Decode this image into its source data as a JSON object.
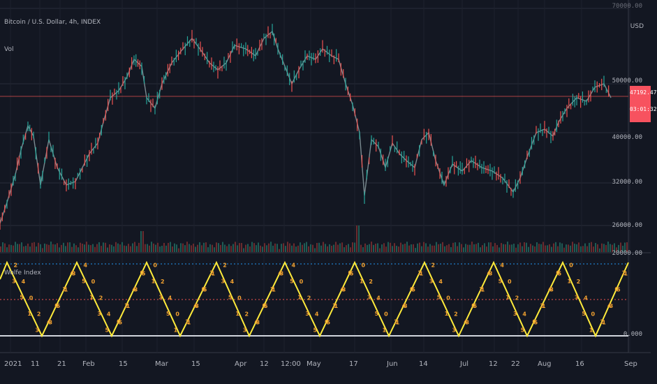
{
  "symbol": {
    "title": "Bitcoin / U.S. Dollar, 4h, INDEX",
    "volume_label": "Vol"
  },
  "indicator": {
    "name": "Wolfe Index"
  },
  "price_axis": {
    "currency": "USD",
    "ticks": [
      "70000.00",
      "50000.00",
      "40000.00",
      "32000.00",
      "26000.00",
      "20000.00"
    ],
    "last_price": "47192.47",
    "countdown": "03:01:32",
    "last_price_color": "#f7525f"
  },
  "indicator_axis": {
    "ticks": [
      "0.000"
    ]
  },
  "time_axis": {
    "ticks": [
      "2021",
      "11",
      "21",
      "Feb",
      "15",
      "Mar",
      "15",
      "Apr",
      "12",
      "12:00",
      "May",
      "17",
      "Jun",
      "14",
      "Jul",
      "12",
      "22",
      "Aug",
      "16",
      "Sep"
    ]
  },
  "colors": {
    "background": "#131722",
    "grid": "#2a2e39",
    "up": "#26a69a",
    "down": "#ef5350",
    "zigzag": "#ffeb3b",
    "labels": "#f0a030",
    "upper_band": "#2196f3",
    "mid_band": "#ef5350",
    "zero_line": "#d1d4dc"
  }
}
